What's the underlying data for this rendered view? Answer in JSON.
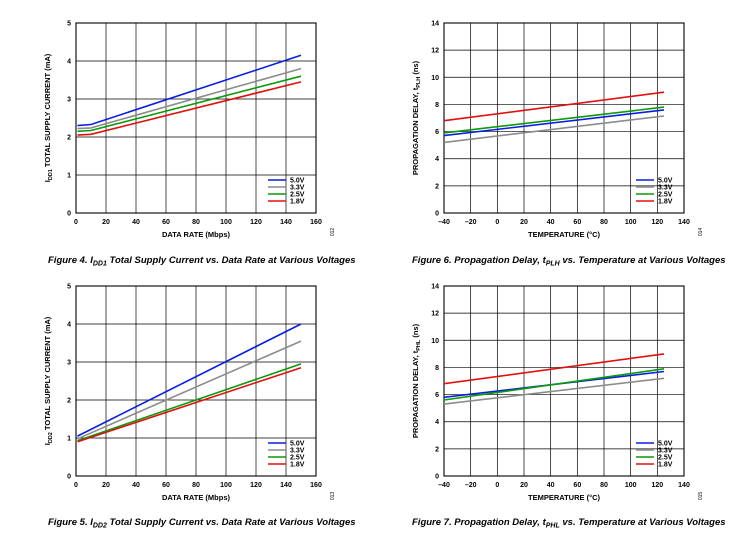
{
  "colors": {
    "5.0V": "#0a1ee0",
    "3.3V": "#8c8c8c",
    "2.5V": "#0a9a0a",
    "1.8V": "#e01010"
  },
  "chart_data": [
    {
      "type": "line",
      "ylabel_main": "I",
      "ylabel_sub": "DD1",
      "ylabel_rest": " TOTAL SUPPLY CURRENT (mA)",
      "xlabel": "DATA RATE (Mbps)",
      "xlim": [
        0,
        160
      ],
      "ylim": [
        0,
        5
      ],
      "xticks": [
        "0",
        "20",
        "40",
        "60",
        "80",
        "100",
        "120",
        "140",
        "160"
      ],
      "yticks": [
        "0",
        "1",
        "2",
        "3",
        "4",
        "5"
      ],
      "grid": true,
      "legend_position": "bottom-right",
      "fig_id": "012",
      "caption_parts": [
        "Figure 4. I",
        "DD1",
        " Total Supply Current vs. Data Rate at Various Voltages"
      ],
      "series": [
        {
          "name": "5.0V",
          "x": [
            1,
            10,
            150
          ],
          "y": [
            2.3,
            2.33,
            4.15
          ]
        },
        {
          "name": "3.3V",
          "x": [
            1,
            10,
            150
          ],
          "y": [
            2.22,
            2.24,
            3.8
          ]
        },
        {
          "name": "2.5V",
          "x": [
            1,
            10,
            150
          ],
          "y": [
            2.15,
            2.17,
            3.6
          ]
        },
        {
          "name": "1.8V",
          "x": [
            1,
            10,
            150
          ],
          "y": [
            2.05,
            2.07,
            3.45
          ]
        }
      ]
    },
    {
      "type": "line",
      "ylabel_main": "PROPAGATION DELAY, t",
      "ylabel_sub": "PLH",
      "ylabel_rest": " (ns)",
      "xlabel": "TEMPERATURE (°C)",
      "xlim": [
        -40,
        140
      ],
      "ylim": [
        0,
        14
      ],
      "xticks": [
        "–40",
        "–20",
        "0",
        "20",
        "40",
        "60",
        "80",
        "100",
        "120",
        "140"
      ],
      "yticks": [
        "0",
        "2",
        "4",
        "6",
        "8",
        "10",
        "12",
        "14"
      ],
      "grid": true,
      "legend_position": "bottom-right",
      "fig_id": "014",
      "caption_parts": [
        "Figure 6. Propagation Delay, t",
        "PLH",
        " vs. Temperature at Various Voltages"
      ],
      "series": [
        {
          "name": "5.0V",
          "x": [
            -40,
            125
          ],
          "y": [
            5.7,
            7.6
          ]
        },
        {
          "name": "3.3V",
          "x": [
            -40,
            125
          ],
          "y": [
            5.2,
            7.15
          ]
        },
        {
          "name": "2.5V",
          "x": [
            -40,
            125
          ],
          "y": [
            5.9,
            7.8
          ]
        },
        {
          "name": "1.8V",
          "x": [
            -40,
            125
          ],
          "y": [
            6.8,
            8.9
          ]
        }
      ]
    },
    {
      "type": "line",
      "ylabel_main": "I",
      "ylabel_sub": "DD2",
      "ylabel_rest": " TOTAL SUPPLY CURRENT (mA)",
      "xlabel": "DATA RATE (Mbps)",
      "xlim": [
        0,
        160
      ],
      "ylim": [
        0,
        5
      ],
      "xticks": [
        "0",
        "20",
        "40",
        "60",
        "80",
        "100",
        "120",
        "140",
        "160"
      ],
      "yticks": [
        "0",
        "1",
        "2",
        "3",
        "4",
        "5"
      ],
      "grid": true,
      "legend_position": "bottom-right",
      "fig_id": "013",
      "caption_parts": [
        "Figure 5. I",
        "DD2",
        " Total Supply Current vs. Data Rate at Various Voltages"
      ],
      "series": [
        {
          "name": "5.0V",
          "x": [
            1,
            150
          ],
          "y": [
            1.05,
            4.0
          ]
        },
        {
          "name": "3.3V",
          "x": [
            1,
            150
          ],
          "y": [
            0.98,
            3.55
          ]
        },
        {
          "name": "2.5V",
          "x": [
            1,
            150
          ],
          "y": [
            0.93,
            2.95
          ]
        },
        {
          "name": "1.8V",
          "x": [
            1,
            150
          ],
          "y": [
            0.9,
            2.85
          ]
        }
      ]
    },
    {
      "type": "line",
      "ylabel_main": "PROPAGATION DELAY, t",
      "ylabel_sub": "PHL",
      "ylabel_rest": " (ns)",
      "xlabel": "TEMPERATURE (°C)",
      "xlim": [
        -40,
        140
      ],
      "ylim": [
        0,
        14
      ],
      "xticks": [
        "–40",
        "–20",
        "0",
        "20",
        "40",
        "60",
        "80",
        "100",
        "120",
        "140"
      ],
      "yticks": [
        "0",
        "2",
        "4",
        "6",
        "8",
        "10",
        "12",
        "14"
      ],
      "grid": true,
      "legend_position": "bottom-right",
      "fig_id": "015",
      "caption_parts": [
        "Figure 7. Propagation Delay, t",
        "PHL",
        " vs. Temperature at Various Voltages"
      ],
      "series": [
        {
          "name": "5.0V",
          "x": [
            -40,
            125
          ],
          "y": [
            5.8,
            7.7
          ]
        },
        {
          "name": "3.3V",
          "x": [
            -40,
            125
          ],
          "y": [
            5.3,
            7.2
          ]
        },
        {
          "name": "2.5V",
          "x": [
            -40,
            125
          ],
          "y": [
            5.6,
            7.9
          ]
        },
        {
          "name": "1.8V",
          "x": [
            -40,
            125
          ],
          "y": [
            6.8,
            9.0
          ]
        }
      ]
    }
  ]
}
